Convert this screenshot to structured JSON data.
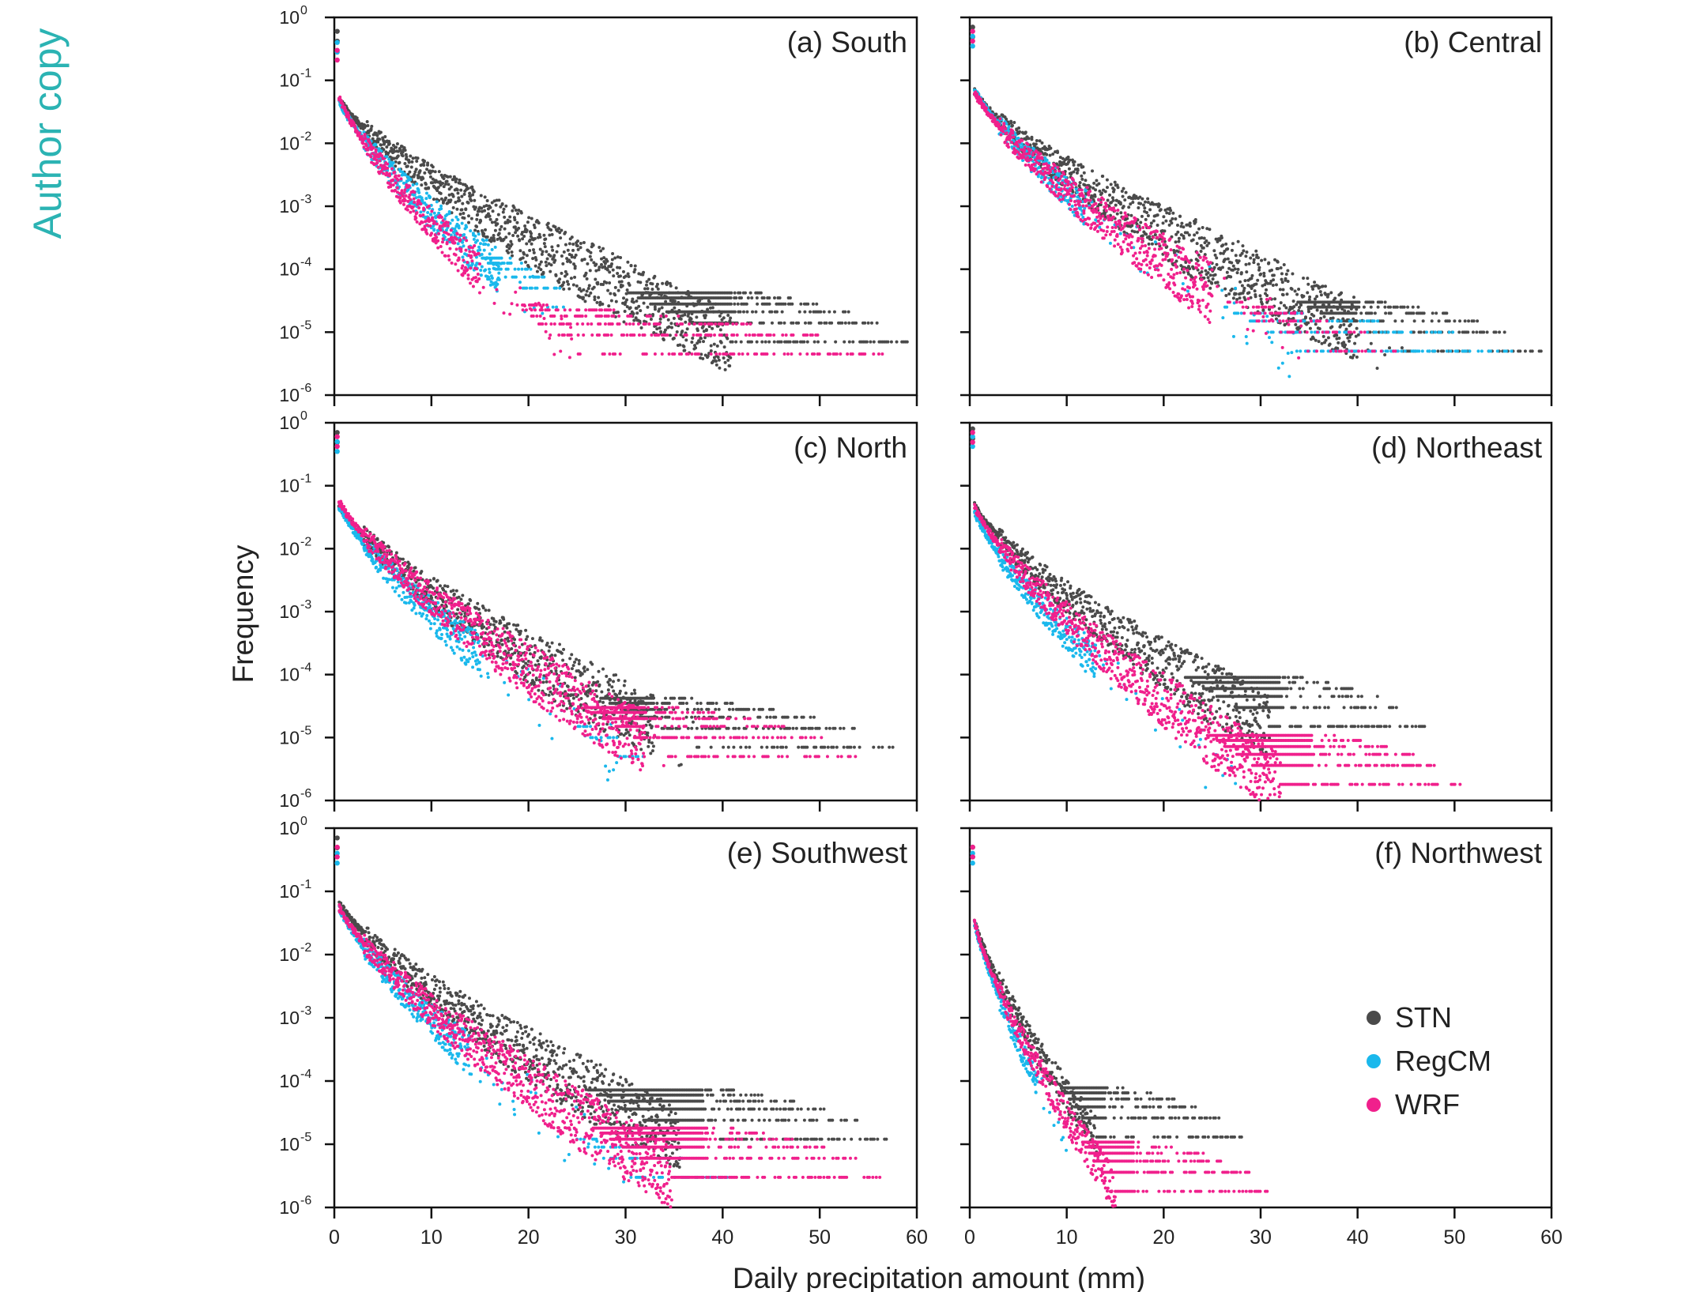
{
  "watermark": "Author copy",
  "figure": {
    "xlabel": "Daily precipitation amount (mm)",
    "ylabel": "Frequency"
  },
  "legend": {
    "placement": "inside panel (f), right-middle",
    "entries": [
      {
        "name": "STN",
        "color": "#4a4a4a"
      },
      {
        "name": "RegCM",
        "color": "#1ab8ec"
      },
      {
        "name": "WRF",
        "color": "#f0208c"
      }
    ]
  },
  "chart_data": [
    {
      "panel": "(a) South",
      "type": "scatter",
      "xlim": [
        0,
        60
      ],
      "xticks": [
        0,
        10,
        20,
        30,
        40,
        50,
        60
      ],
      "ylim": [
        1e-06,
        1
      ],
      "yscale": "log",
      "yticks": [
        {
          "base": "10",
          "exp": "0"
        },
        {
          "base": "10",
          "exp": "-1"
        },
        {
          "base": "10",
          "exp": "-2"
        },
        {
          "base": "10",
          "exp": "-3"
        },
        {
          "base": "10",
          "exp": "-4"
        },
        {
          "base": "10",
          "exp": "-5"
        },
        {
          "base": "10",
          "exp": "-6"
        }
      ],
      "series": [
        {
          "name": "STN",
          "color": "#4a4a4a",
          "x0": 0.3,
          "y0": 0.6,
          "y1": 0.06,
          "k": 0.4,
          "xmax": 60,
          "floor": 7e-06,
          "gapStart": 41
        },
        {
          "name": "RegCM",
          "color": "#1ab8ec",
          "x0": 0.3,
          "y0": 0.4,
          "y1": 0.06,
          "k": 0.55,
          "xmax": 25,
          "floor": 2.5e-05,
          "gapStart": 17
        },
        {
          "name": "WRF",
          "color": "#f0208c",
          "x0": 0.3,
          "y0": 0.3,
          "y1": 0.07,
          "k": 0.62,
          "xmax": 59,
          "floor": 4.5e-06,
          "gapStart": 15
        }
      ]
    },
    {
      "panel": "(b) Central",
      "type": "scatter",
      "xlim": [
        0,
        60
      ],
      "xticks": [
        0,
        10,
        20,
        30,
        40,
        50,
        60
      ],
      "ylim": [
        1e-06,
        1
      ],
      "yscale": "log",
      "yticks": [
        {
          "base": "10",
          "exp": "0"
        },
        {
          "base": "10",
          "exp": "-1"
        },
        {
          "base": "10",
          "exp": "-2"
        },
        {
          "base": "10",
          "exp": "-3"
        },
        {
          "base": "10",
          "exp": "-4"
        },
        {
          "base": "10",
          "exp": "-5"
        },
        {
          "base": "10",
          "exp": "-6"
        }
      ],
      "series": [
        {
          "name": "STN",
          "color": "#4a4a4a",
          "x0": 0.3,
          "y0": 0.7,
          "y1": 0.08,
          "k": 0.4,
          "xmax": 60,
          "floor": 5e-06,
          "gapStart": 40
        },
        {
          "name": "RegCM",
          "color": "#1ab8ec",
          "x0": 0.3,
          "y0": 0.5,
          "y1": 0.09,
          "k": 0.5,
          "xmax": 60,
          "floor": 5e-06,
          "gapStart": 12
        },
        {
          "name": "WRF",
          "color": "#f0208c",
          "x0": 0.3,
          "y0": 0.6,
          "y1": 0.08,
          "k": 0.48,
          "xmax": 45,
          "floor": 5e-06,
          "gapStart": 25
        }
      ]
    },
    {
      "panel": "(c) North",
      "type": "scatter",
      "xlim": [
        0,
        60
      ],
      "xticks": [
        0,
        10,
        20,
        30,
        40,
        50,
        60
      ],
      "ylim": [
        1e-06,
        1
      ],
      "yscale": "log",
      "yticks": [
        {
          "base": "10",
          "exp": "0"
        },
        {
          "base": "10",
          "exp": "-1"
        },
        {
          "base": "10",
          "exp": "-2"
        },
        {
          "base": "10",
          "exp": "-3"
        },
        {
          "base": "10",
          "exp": "-4"
        },
        {
          "base": "10",
          "exp": "-5"
        },
        {
          "base": "10",
          "exp": "-6"
        }
      ],
      "series": [
        {
          "name": "STN",
          "color": "#4a4a4a",
          "x0": 0.3,
          "y0": 0.7,
          "y1": 0.06,
          "k": 0.43,
          "xmax": 59,
          "floor": 7e-06,
          "gapStart": 33
        },
        {
          "name": "RegCM",
          "color": "#1ab8ec",
          "x0": 0.3,
          "y0": 0.5,
          "y1": 0.06,
          "k": 0.53,
          "xmax": 33,
          "floor": 5e-06,
          "gapStart": 15
        },
        {
          "name": "WRF",
          "color": "#f0208c",
          "x0": 0.3,
          "y0": 0.6,
          "y1": 0.07,
          "k": 0.48,
          "xmax": 55,
          "floor": 5e-06,
          "gapStart": 32
        }
      ]
    },
    {
      "panel": "(d) Northeast",
      "type": "scatter",
      "xlim": [
        0,
        60
      ],
      "xticks": [
        0,
        10,
        20,
        30,
        40,
        50,
        60
      ],
      "ylim": [
        1e-06,
        1
      ],
      "yscale": "log",
      "yticks": [
        {
          "base": "10",
          "exp": "0"
        },
        {
          "base": "10",
          "exp": "-1"
        },
        {
          "base": "10",
          "exp": "-2"
        },
        {
          "base": "10",
          "exp": "-3"
        },
        {
          "base": "10",
          "exp": "-4"
        },
        {
          "base": "10",
          "exp": "-5"
        },
        {
          "base": "10",
          "exp": "-6"
        }
      ],
      "series": [
        {
          "name": "STN",
          "color": "#4a4a4a",
          "x0": 0.3,
          "y0": 0.8,
          "y1": 0.06,
          "k": 0.45,
          "xmax": 48,
          "floor": 1.5e-05,
          "gapStart": 32
        },
        {
          "name": "RegCM",
          "color": "#1ab8ec",
          "x0": 0.3,
          "y0": 0.6,
          "y1": 0.05,
          "k": 0.6,
          "xmax": 28,
          "floor": 1.8e-06,
          "gapStart": 13
        },
        {
          "name": "WRF",
          "color": "#f0208c",
          "x0": 0.3,
          "y0": 0.7,
          "y1": 0.06,
          "k": 0.55,
          "xmax": 52,
          "floor": 1.8e-06,
          "gapStart": 35
        }
      ]
    },
    {
      "panel": "(e) Southwest",
      "type": "scatter",
      "xlim": [
        0,
        60
      ],
      "xticks": [
        0,
        10,
        20,
        30,
        40,
        50,
        60
      ],
      "ylim": [
        1e-06,
        1
      ],
      "yscale": "log",
      "yticks": [
        {
          "base": "10",
          "exp": "0"
        },
        {
          "base": "10",
          "exp": "-1"
        },
        {
          "base": "10",
          "exp": "-2"
        },
        {
          "base": "10",
          "exp": "-3"
        },
        {
          "base": "10",
          "exp": "-4"
        },
        {
          "base": "10",
          "exp": "-5"
        },
        {
          "base": "10",
          "exp": "-6"
        }
      ],
      "series": [
        {
          "name": "STN",
          "color": "#4a4a4a",
          "x0": 0.3,
          "y0": 0.7,
          "y1": 0.08,
          "k": 0.43,
          "xmax": 58,
          "floor": 1.2e-05,
          "gapStart": 38
        },
        {
          "name": "RegCM",
          "color": "#1ab8ec",
          "x0": 0.3,
          "y0": 0.4,
          "y1": 0.07,
          "k": 0.55,
          "xmax": 42,
          "floor": 3e-06,
          "gapStart": 14
        },
        {
          "name": "WRF",
          "color": "#f0208c",
          "x0": 0.3,
          "y0": 0.5,
          "y1": 0.07,
          "k": 0.5,
          "xmax": 58,
          "floor": 3e-06,
          "gapStart": 38
        }
      ]
    },
    {
      "panel": "(f) Northwest",
      "type": "scatter",
      "xlim": [
        0,
        60
      ],
      "xticks": [
        0,
        10,
        20,
        30,
        40,
        50,
        60
      ],
      "ylim": [
        1e-06,
        1
      ],
      "yscale": "log",
      "yticks": [
        {
          "base": "10",
          "exp": "0"
        },
        {
          "base": "10",
          "exp": "-1"
        },
        {
          "base": "10",
          "exp": "-2"
        },
        {
          "base": "10",
          "exp": "-3"
        },
        {
          "base": "10",
          "exp": "-4"
        },
        {
          "base": "10",
          "exp": "-5"
        },
        {
          "base": "10",
          "exp": "-6"
        }
      ],
      "series": [
        {
          "name": "STN",
          "color": "#4a4a4a",
          "x0": 0.3,
          "y0": 0.5,
          "y1": 0.05,
          "k": 0.85,
          "xmax": 29,
          "floor": 1.3e-05,
          "gapStart": 14
        },
        {
          "name": "RegCM",
          "color": "#1ab8ec",
          "x0": 0.3,
          "y0": 0.4,
          "y1": 0.05,
          "k": 1.05,
          "xmax": 10,
          "floor": 1.8e-06,
          "gapStart": 7
        },
        {
          "name": "WRF",
          "color": "#f0208c",
          "x0": 0.3,
          "y0": 0.5,
          "y1": 0.05,
          "k": 0.95,
          "xmax": 32,
          "floor": 1.8e-06,
          "gapStart": 17
        }
      ]
    }
  ]
}
